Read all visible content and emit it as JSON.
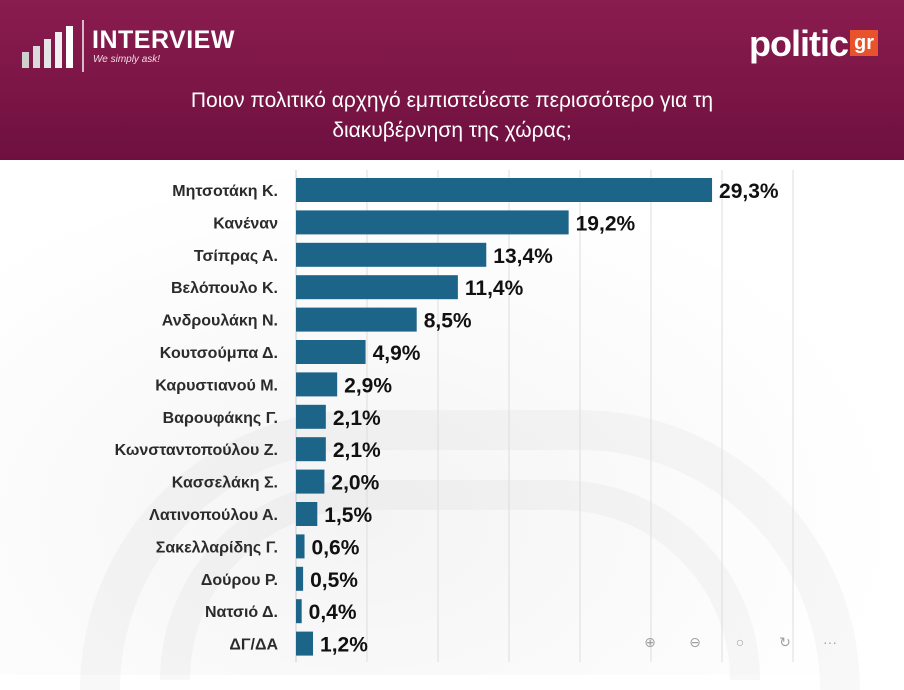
{
  "brand": {
    "name": "INTERVIEW",
    "tagline": "We simply ask!"
  },
  "publisher": {
    "word": "politic",
    "suffix": "gr"
  },
  "colors": {
    "header": "#7a1545",
    "bar": "#1d6489",
    "label": "#2b2b2b",
    "publisher_suffix": "#e8532b"
  },
  "title_lines": [
    "Ποιον πολιτικό αρχηγό εμπιστεύεστε περισσότερο για τη",
    "διακυβέρνηση της χώρας;"
  ],
  "chart_data": {
    "type": "bar",
    "orientation": "horizontal",
    "title": "Ποιον πολιτικό αρχηγό εμπιστεύεστε περισσότερο για τη διακυβέρνηση της χώρας;",
    "categories": [
      "Μητσοτάκη Κ.",
      "Κανέναν",
      "Τσίπρας Α.",
      "Βελόπουλο Κ.",
      "Ανδρουλάκη Ν.",
      "Κουτσούμπα Δ.",
      "Καρυστιανού Μ.",
      "Βαρουφάκης Γ.",
      "Κωνσταντοπούλου Ζ.",
      "Κασσελάκη Σ.",
      "Λατινοπούλου Α.",
      "Σακελλαρίδης Γ.",
      "Δούρου Ρ.",
      "Νατσιό Δ.",
      "ΔΓ/ΔΑ"
    ],
    "values": [
      29.3,
      19.2,
      13.4,
      11.4,
      8.5,
      4.9,
      2.9,
      2.1,
      2.1,
      2.0,
      1.5,
      0.6,
      0.5,
      0.4,
      1.2
    ],
    "value_labels": [
      "29,3%",
      "19,2%",
      "13,4%",
      "11,4%",
      "8,5%",
      "4,9%",
      "2,9%",
      "2,1%",
      "2,1%",
      "2,0%",
      "1,5%",
      "0,6%",
      "0,5%",
      "0,4%",
      "1,2%"
    ],
    "xlim": [
      0,
      35
    ],
    "grid": true,
    "xlabel": "",
    "ylabel": ""
  },
  "toolbar": [
    {
      "name": "zoom-in-icon",
      "glyph": "⊕"
    },
    {
      "name": "zoom-out-icon",
      "glyph": "⊖"
    },
    {
      "name": "search-icon",
      "glyph": "○"
    },
    {
      "name": "reset-icon",
      "glyph": "↻"
    },
    {
      "name": "more-icon",
      "glyph": "···"
    }
  ]
}
